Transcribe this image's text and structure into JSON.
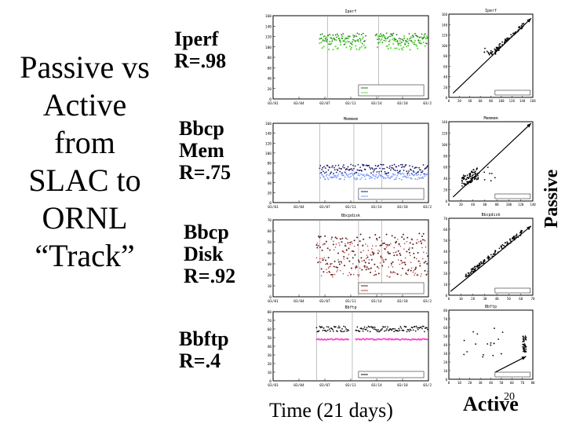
{
  "slide": {
    "title_lines": [
      "Passive vs",
      "Active",
      "from",
      "SLAC to",
      "ORNL",
      "“Track”"
    ],
    "page_number": "20"
  },
  "rows": [
    {
      "name": "iperf",
      "label_lines": [
        "Iperf",
        "R=.98"
      ],
      "ts_title": "Iperf",
      "sc_title": "Iperf"
    },
    {
      "name": "bbcp-mem",
      "label_lines": [
        "Bbcp",
        "Mem",
        "R=.75"
      ],
      "ts_title": "Memmem",
      "sc_title": "Memmem"
    },
    {
      "name": "bbcp-disk",
      "label_lines": [
        "Bbcp",
        "Disk",
        "R=.92"
      ],
      "ts_title": "Bbcpdisk",
      "sc_title": "Bbcpdisk"
    },
    {
      "name": "bbftp",
      "label_lines": [
        "Bbftp",
        "R=.4"
      ],
      "ts_title": "Bbftp",
      "sc_title": "Bbftp"
    }
  ],
  "axes": {
    "time_label": "Time (21 days)",
    "active_label": "Active",
    "passive_label": "Passive"
  },
  "colors": {
    "iperf_active": "#1a7a1a",
    "iperf_passive": "#66dd44",
    "mem_active": "#1a1a66",
    "mem_passive": "#7799ff",
    "disk_active": "#552222",
    "disk_passive": "#bb4444",
    "bbftp_active": "#111111",
    "bbftp_passive": "#ff33cc"
  }
}
